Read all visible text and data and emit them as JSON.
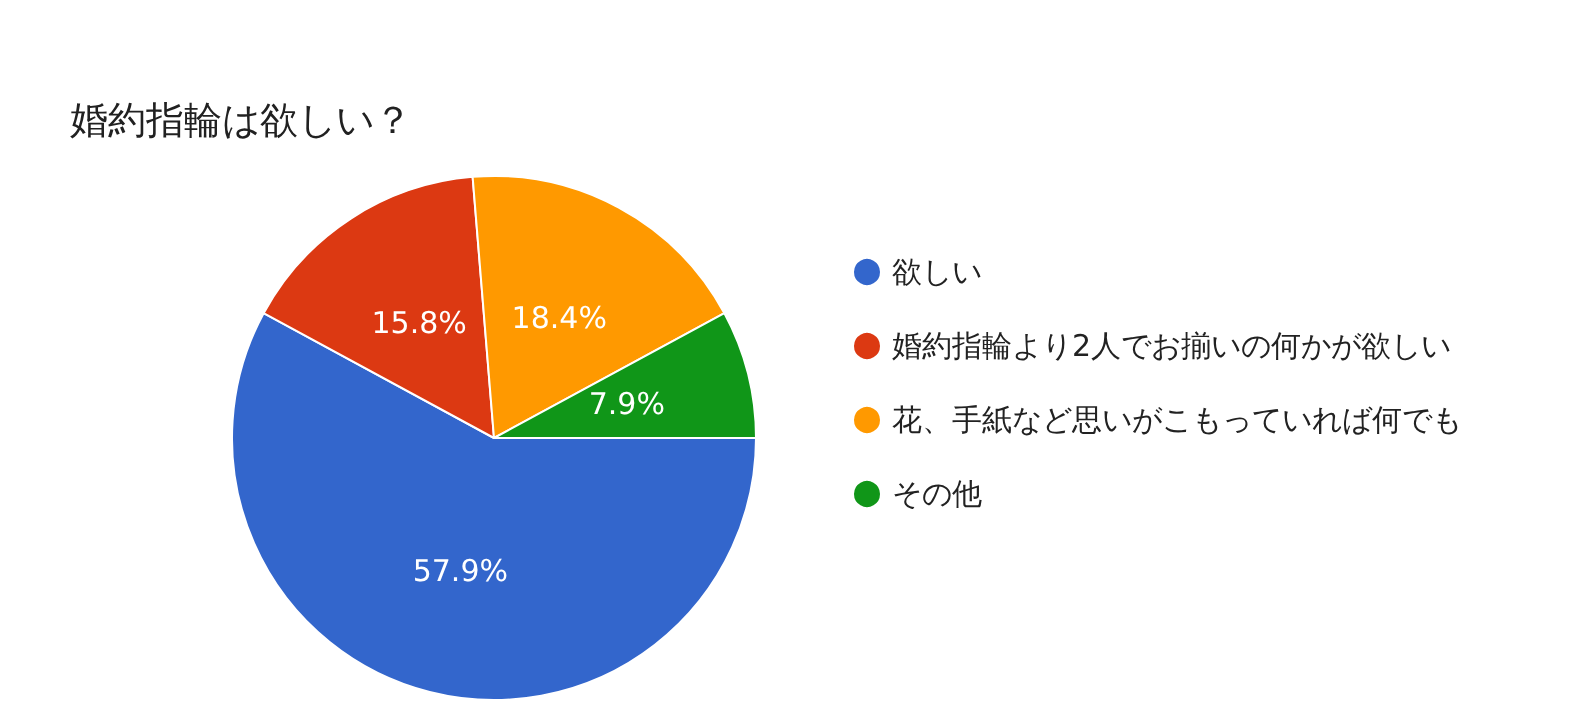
{
  "chart_data": {
    "type": "pie",
    "title": "婚約指輪は欲しい？",
    "categories": [
      "欲しい",
      "婚約指輪より2人でお揃いの何かが欲しい",
      "花、手紙など思いがこもっていれば何でも",
      "その他"
    ],
    "values": [
      57.9,
      15.8,
      18.4,
      7.9
    ],
    "colors": [
      "#3366cc",
      "#dc3912",
      "#ff9900",
      "#109618"
    ],
    "value_labels": [
      "57.9%",
      "15.8%",
      "18.4%",
      "7.9%"
    ],
    "legend": "right"
  }
}
